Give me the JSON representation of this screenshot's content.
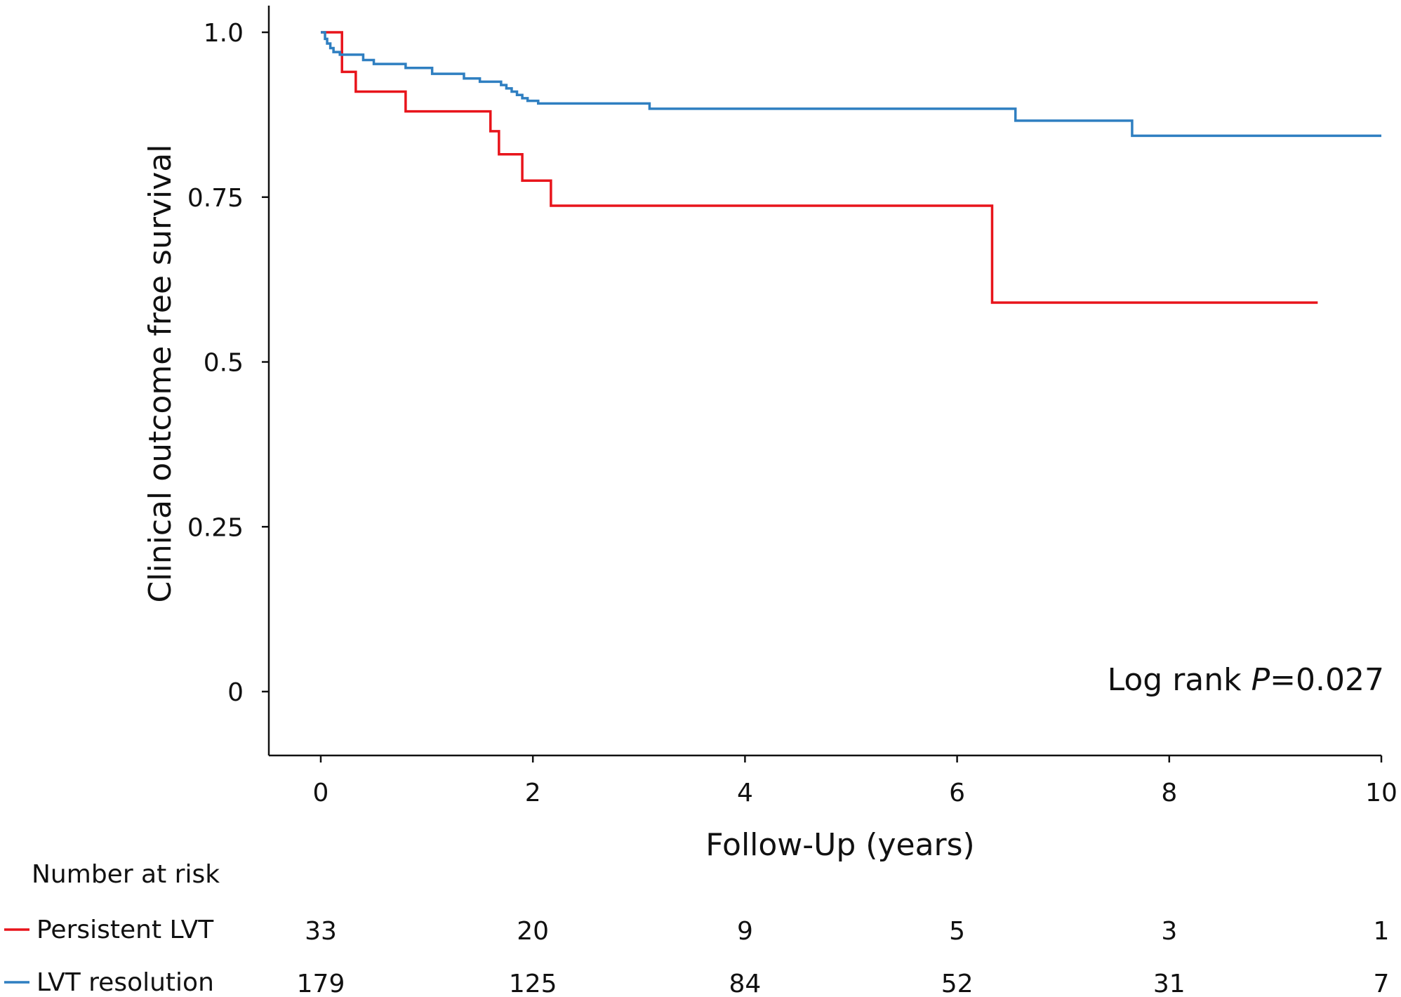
{
  "chart_data": {
    "type": "line",
    "step": true,
    "title": "",
    "xlabel": "Follow-Up (years)",
    "ylabel": "Clinical outcome free survival",
    "xlim": [
      -0.5,
      10
    ],
    "ylim": [
      -0.095,
      1.045
    ],
    "x_ticks": [
      0,
      2,
      4,
      6,
      8,
      10
    ],
    "x_tick_labels": [
      "0",
      "2",
      "4",
      "6",
      "8",
      "10"
    ],
    "y_ticks": [
      0,
      0.25,
      0.5,
      0.75,
      1.0
    ],
    "y_tick_labels": [
      "0",
      "0.25",
      "0.5",
      "0.75",
      "1.0"
    ],
    "grid": false,
    "annotation": {
      "prefix": "Log rank ",
      "italic": "P",
      "suffix": "=0.027"
    },
    "series": [
      {
        "name": "Persistent LVT",
        "color": "#e8141b",
        "points": [
          [
            0,
            1.0
          ],
          [
            0.2,
            0.94
          ],
          [
            0.33,
            0.91
          ],
          [
            0.8,
            0.88
          ],
          [
            1.6,
            0.85
          ],
          [
            1.68,
            0.815
          ],
          [
            1.9,
            0.775
          ],
          [
            2.17,
            0.737
          ],
          [
            6.33,
            0.59
          ],
          [
            9.4,
            0.59
          ]
        ]
      },
      {
        "name": "LVT resolution",
        "color": "#2f7fc1",
        "points": [
          [
            0,
            1.0
          ],
          [
            0.04,
            0.99
          ],
          [
            0.06,
            0.983
          ],
          [
            0.09,
            0.976
          ],
          [
            0.12,
            0.97
          ],
          [
            0.18,
            0.966
          ],
          [
            0.4,
            0.958
          ],
          [
            0.5,
            0.952
          ],
          [
            0.8,
            0.946
          ],
          [
            1.05,
            0.937
          ],
          [
            1.35,
            0.932
          ],
          [
            1.35,
            0.93
          ],
          [
            1.4,
            0.93
          ],
          [
            1.5,
            0.925
          ],
          [
            1.7,
            0.92
          ],
          [
            1.75,
            0.915
          ],
          [
            1.8,
            0.91
          ],
          [
            1.85,
            0.905
          ],
          [
            1.9,
            0.9
          ],
          [
            1.95,
            0.896
          ],
          [
            2.05,
            0.892
          ],
          [
            2.15,
            0.892
          ],
          [
            3.1,
            0.884
          ],
          [
            6.55,
            0.866
          ],
          [
            7.65,
            0.843
          ],
          [
            10.0,
            0.843
          ]
        ]
      }
    ],
    "risk_table": {
      "title": "Number at risk",
      "times": [
        0,
        2,
        4,
        6,
        8,
        10
      ],
      "rows": [
        {
          "name": "Persistent LVT",
          "color": "#e8141b",
          "values": [
            "33",
            "20",
            "9",
            "5",
            "3",
            "1"
          ]
        },
        {
          "name": "LVT resolution",
          "color": "#2f7fc1",
          "values": [
            "179",
            "125",
            "84",
            "52",
            "31",
            "7"
          ]
        }
      ]
    }
  }
}
